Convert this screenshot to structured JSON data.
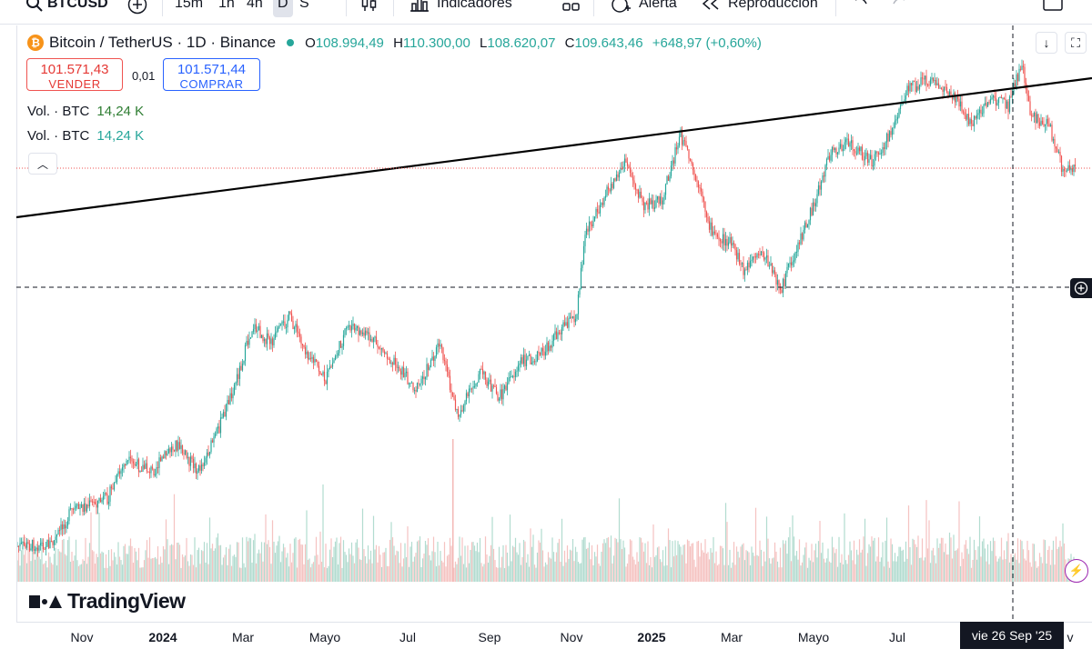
{
  "toolbar": {
    "symbol": "BTCUSD",
    "intervals": [
      "15m",
      "1h",
      "4h",
      "D",
      "S"
    ],
    "active_interval": "D",
    "indicators_label": "Indicadores",
    "alert_label": "Alerta",
    "replay_label": "Reproducción"
  },
  "legend": {
    "coin_glyph": "₿",
    "title": "Bitcoin / TetherUS · 1D · Binance",
    "o_label": "O",
    "o_value": "108.994,49",
    "h_label": "H",
    "h_value": "110.300,00",
    "l_label": "L",
    "l_value": "108.620,07",
    "c_label": "C",
    "c_value": "109.643,46",
    "change": "+648,97 (+0,60%)"
  },
  "trade": {
    "sell_price": "101.571,43",
    "sell_label": "VENDER",
    "spread": "0,01",
    "buy_price": "101.571,44",
    "buy_label": "COMPRAR"
  },
  "volume_legend": [
    {
      "label": "Vol. · BTC",
      "value": "14,24 K"
    },
    {
      "label": "Vol. · BTC",
      "value": "14,24 K"
    }
  ],
  "watermark": "TradingView",
  "time_axis": [
    {
      "label": "Nov",
      "bold": false
    },
    {
      "label": "2024",
      "bold": true
    },
    {
      "label": "Mar",
      "bold": false
    },
    {
      "label": "Mayo",
      "bold": false
    },
    {
      "label": "Jul",
      "bold": false
    },
    {
      "label": "Sep",
      "bold": false
    },
    {
      "label": "Nov",
      "bold": false
    },
    {
      "label": "2025",
      "bold": true
    },
    {
      "label": "Mar",
      "bold": false
    },
    {
      "label": "Mayo",
      "bold": false
    },
    {
      "label": "Jul",
      "bold": false
    },
    {
      "label": "v",
      "bold": false
    }
  ],
  "crosshair_date": "vie 26 Sep '25",
  "colors": {
    "up": "#26a69a",
    "down": "#ef5350",
    "trendline": "#000000",
    "crosshair": "#131722"
  },
  "icons": {
    "search": "search-icon",
    "add": "plus-circle-icon",
    "chevron": "chevron-down-icon",
    "candles": "candlestick-icon",
    "indicators": "indicators-icon",
    "templates": "templates-icon",
    "alert": "alert-clock-icon",
    "replay": "rewind-icon",
    "undo": "undo-icon",
    "redo": "redo-icon"
  }
}
